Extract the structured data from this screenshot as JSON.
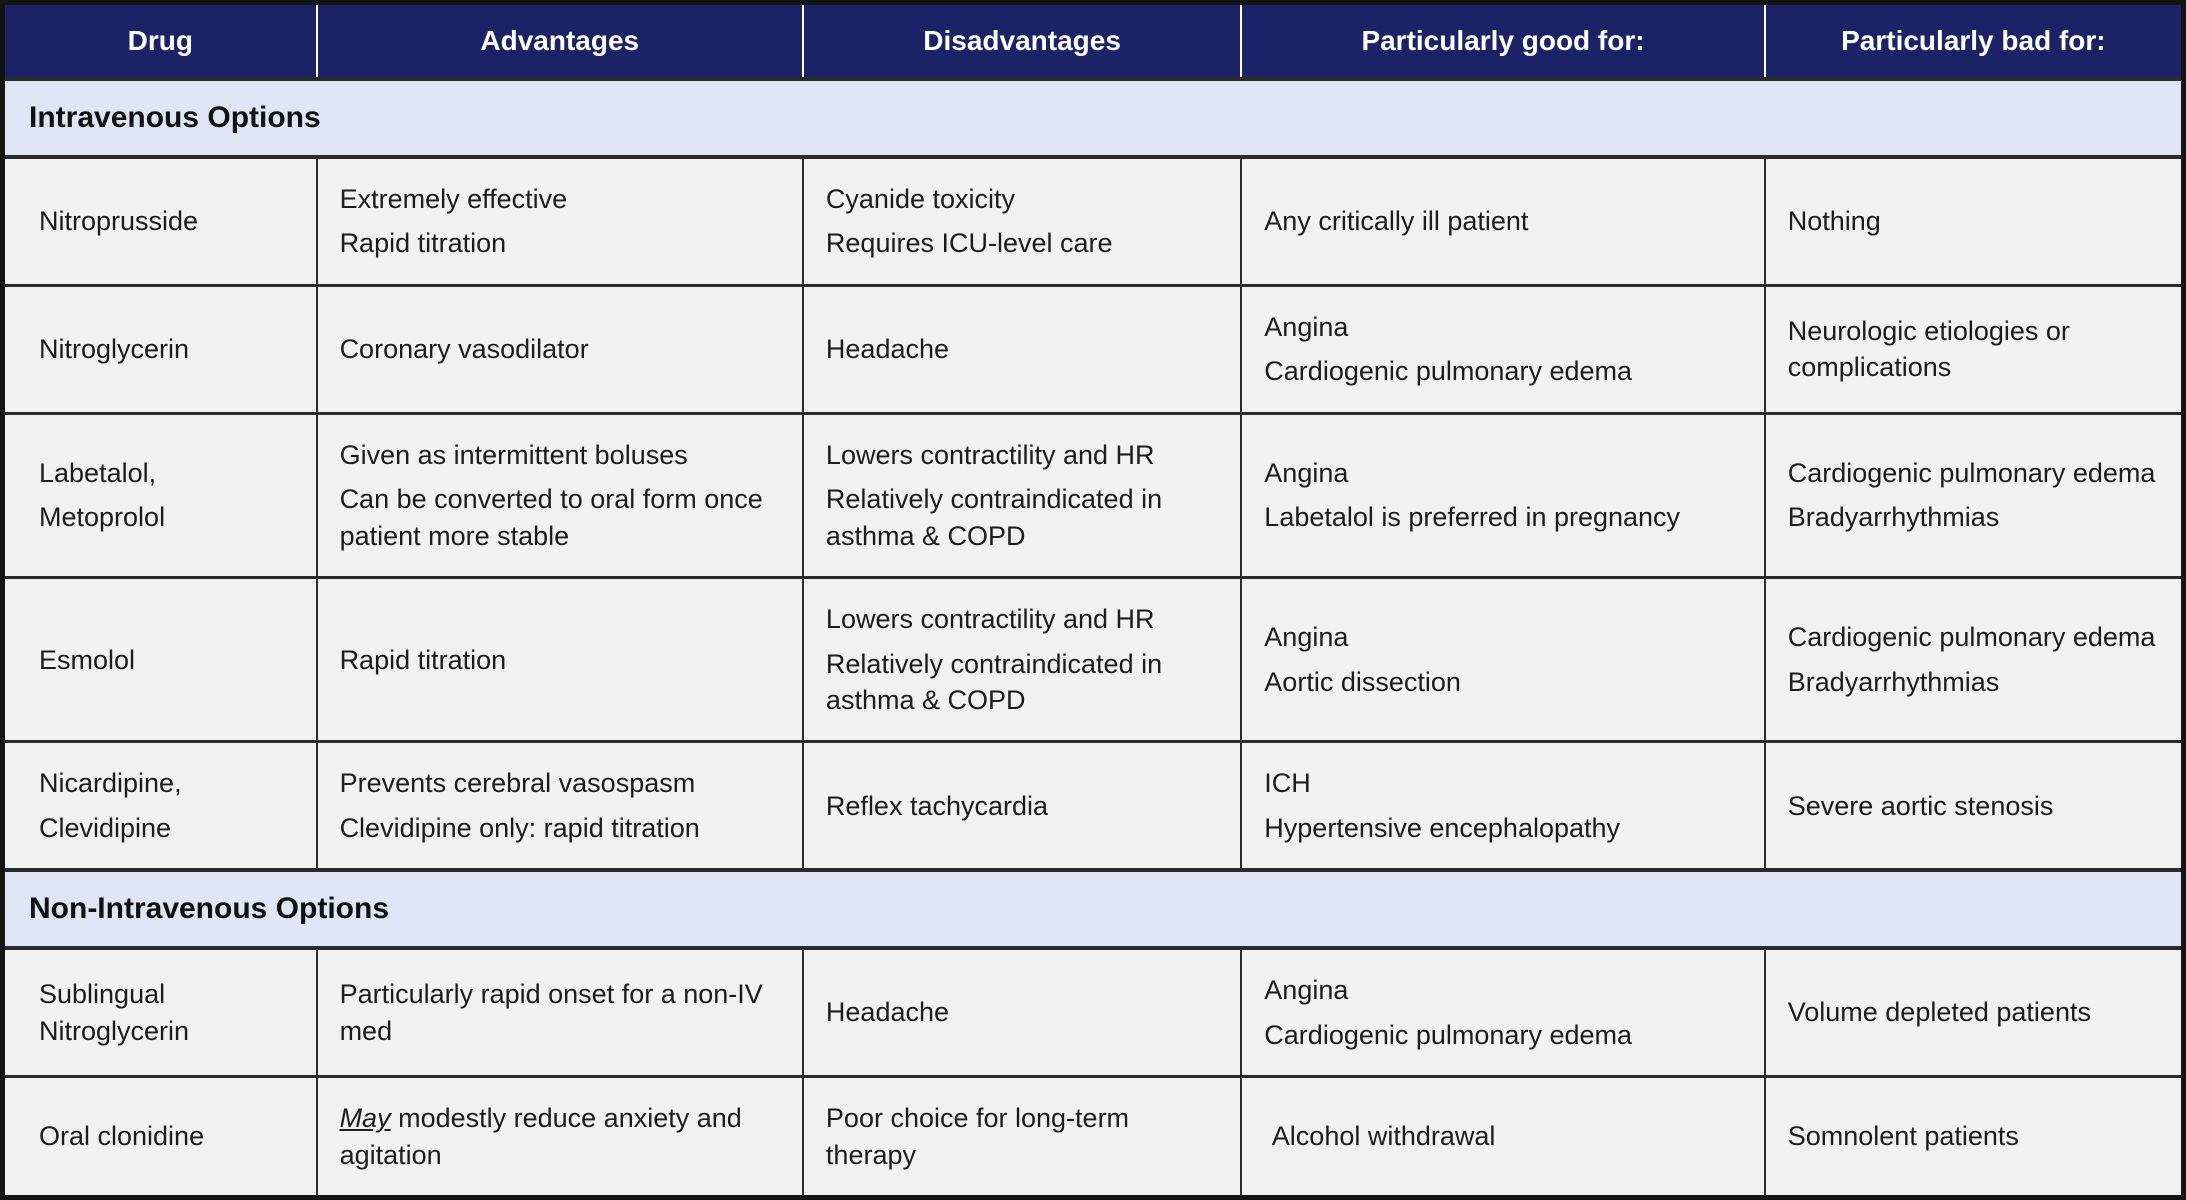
{
  "table": {
    "header": [
      "Drug",
      "Advantages",
      "Disadvantages",
      "Particularly good for:",
      "Particularly bad for:"
    ],
    "sections": [
      {
        "title": "Intravenous Options",
        "rows": [
          {
            "cells": [
              [
                "Nitroprusside"
              ],
              [
                "Extremely effective",
                "Rapid titration"
              ],
              [
                "Cyanide toxicity",
                "Requires ICU-level care"
              ],
              [
                "Any critically ill patient"
              ],
              [
                "Nothing"
              ]
            ]
          },
          {
            "cells": [
              [
                "Nitroglycerin"
              ],
              [
                "Coronary vasodilator"
              ],
              [
                "Headache"
              ],
              [
                "Angina",
                "Cardiogenic pulmonary edema"
              ],
              [
                "Neurologic etiologies or complications"
              ]
            ]
          },
          {
            "cells": [
              [
                "Labetalol,",
                "Metoprolol"
              ],
              [
                "Given as intermittent boluses",
                "Can be converted to oral form once patient more stable"
              ],
              [
                "Lowers contractility and HR",
                "Relatively contraindicated in asthma & COPD"
              ],
              [
                "Angina",
                "Labetalol is preferred in pregnancy"
              ],
              [
                "Cardiogenic pulmonary edema",
                "Bradyarrhythmias"
              ]
            ]
          },
          {
            "cells": [
              [
                "Esmolol"
              ],
              [
                "Rapid titration"
              ],
              [
                "Lowers contractility and HR",
                "Relatively contraindicated in asthma & COPD"
              ],
              [
                "Angina",
                "Aortic dissection"
              ],
              [
                "Cardiogenic pulmonary edema",
                "Bradyarrhythmias"
              ]
            ]
          },
          {
            "cells": [
              [
                "Nicardipine,",
                "Clevidipine"
              ],
              [
                "Prevents cerebral vasospasm",
                "Clevidipine only: rapid titration"
              ],
              [
                "Reflex tachycardia"
              ],
              [
                "ICH",
                "Hypertensive encephalopathy"
              ],
              [
                "Severe aortic stenosis"
              ]
            ]
          }
        ]
      },
      {
        "title": "Non-Intravenous Options",
        "rows": [
          {
            "cells": [
              [
                "Sublingual Nitroglycerin"
              ],
              [
                "Particularly rapid onset for a non-IV med"
              ],
              [
                "Headache"
              ],
              [
                "Angina",
                "Cardiogenic pulmonary edema"
              ],
              [
                "Volume depleted patients"
              ]
            ]
          },
          {
            "cells": [
              [
                "Oral clonidine"
              ],
              [
                {
                  "segments": [
                    {
                      "text": "May",
                      "italic": true,
                      "underline": true
                    },
                    {
                      "text": " modestly reduce anxiety and agitation"
                    }
                  ]
                }
              ],
              [
                "Poor choice for long-term therapy"
              ],
              [
                " Alcohol withdrawal"
              ],
              [
                "Somnolent patients"
              ]
            ]
          }
        ]
      }
    ],
    "colors": {
      "header_bg": "#1b2265",
      "header_text": "#ffffff",
      "section_bg": "#dfe5f4",
      "cell_bg": "#f1f1f1",
      "grid": "#2b2b2b",
      "border_dark": "#141414",
      "text": "#1c1c1c"
    }
  }
}
